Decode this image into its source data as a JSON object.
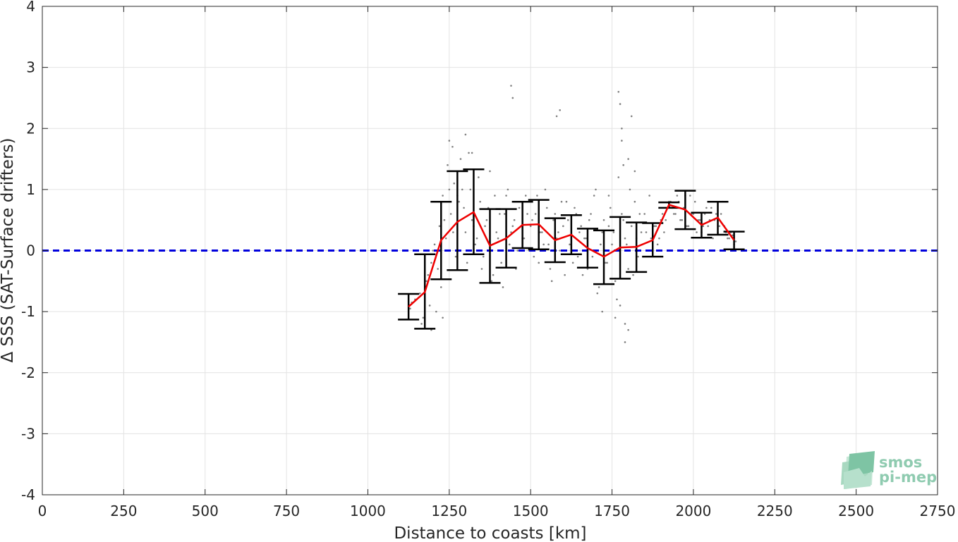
{
  "chart_data": {
    "type": "scatter",
    "xlabel": "Distance to coasts [km]",
    "ylabel": "Δ SSS (SAT-Surface drifters)",
    "xlim": [
      0,
      2750
    ],
    "ylim": [
      -4,
      4
    ],
    "x_ticks": [
      0,
      250,
      500,
      750,
      1000,
      1250,
      1500,
      1750,
      2000,
      2250,
      2500,
      2750
    ],
    "y_ticks": [
      -4,
      -3,
      -2,
      -1,
      0,
      1,
      2,
      3,
      4
    ],
    "grid": true,
    "zero_line": {
      "y": 0,
      "color": "#0000dd",
      "style": "dashed"
    },
    "mean_line_color": "#ee0000",
    "errorbar_color": "#000000",
    "scatter_color": "#808080",
    "binned": {
      "x": [
        1125,
        1175,
        1225,
        1275,
        1325,
        1375,
        1425,
        1475,
        1525,
        1575,
        1625,
        1675,
        1725,
        1775,
        1825,
        1875,
        1925,
        1975,
        2025,
        2075,
        2125
      ],
      "mean": [
        -0.92,
        -0.68,
        0.17,
        0.47,
        0.63,
        0.08,
        0.2,
        0.42,
        0.43,
        0.17,
        0.26,
        0.04,
        -0.1,
        0.05,
        0.06,
        0.17,
        0.75,
        0.67,
        0.42,
        0.54,
        0.17
      ],
      "lower": [
        -1.13,
        -1.28,
        -0.47,
        -0.32,
        -0.06,
        -0.53,
        -0.28,
        0.04,
        0.02,
        -0.19,
        -0.06,
        -0.28,
        -0.55,
        -0.46,
        -0.35,
        -0.1,
        0.7,
        0.35,
        0.21,
        0.26,
        0.02
      ],
      "upper": [
        -0.71,
        -0.06,
        0.8,
        1.3,
        1.33,
        0.68,
        0.68,
        0.8,
        0.83,
        0.53,
        0.58,
        0.36,
        0.33,
        0.55,
        0.46,
        0.45,
        0.79,
        0.98,
        0.62,
        0.8,
        0.31
      ]
    },
    "scatter": {
      "x": [
        1130,
        1145,
        1160,
        1170,
        1180,
        1190,
        1195,
        1205,
        1215,
        1220,
        1230,
        1240,
        1245,
        1255,
        1265,
        1270,
        1280,
        1290,
        1300,
        1310,
        1320,
        1330,
        1340,
        1350,
        1360,
        1370,
        1380,
        1390,
        1400,
        1410,
        1420,
        1430,
        1440,
        1450,
        1460,
        1470,
        1480,
        1490,
        1500,
        1510,
        1520,
        1530,
        1540,
        1550,
        1560,
        1570,
        1580,
        1590,
        1600,
        1610,
        1620,
        1630,
        1640,
        1650,
        1660,
        1670,
        1680,
        1690,
        1700,
        1710,
        1720,
        1730,
        1740,
        1750,
        1760,
        1770,
        1775,
        1780,
        1790,
        1800,
        1810,
        1820,
        1830,
        1840,
        1850,
        1860,
        1870,
        1880,
        1890,
        1900,
        1910,
        1920,
        1930,
        1940,
        1950,
        1960,
        1970,
        1980,
        1990,
        2000,
        2010,
        2020,
        2030,
        2040,
        2050,
        2060,
        2070,
        2080,
        2090,
        2100,
        2110,
        2120,
        2130,
        1135,
        1165,
        1185,
        1200,
        1225,
        1235,
        1250,
        1262,
        1275,
        1285,
        1295,
        1305,
        1315,
        1325,
        1335,
        1345,
        1355,
        1365,
        1375,
        1385,
        1395,
        1405,
        1415,
        1425,
        1435,
        1445,
        1455,
        1465,
        1475,
        1485,
        1495,
        1505,
        1515,
        1525,
        1535,
        1545,
        1555,
        1565,
        1575,
        1585,
        1595,
        1605,
        1615,
        1625,
        1635,
        1645,
        1655,
        1665,
        1675,
        1685,
        1695,
        1705,
        1715,
        1725,
        1735,
        1745,
        1755,
        1765,
        1785,
        1795,
        1805,
        1815,
        1825,
        1835,
        1845,
        1855,
        1865,
        1875,
        1885,
        1895,
        1905,
        1915,
        1925,
        1935,
        1945,
        1955,
        1965,
        1975,
        1985,
        1995,
        2005,
        2015,
        2025,
        2035,
        2045,
        2055,
        2065,
        2075,
        2085,
        2095,
        2105,
        2115,
        2125,
        1440,
        1445,
        1580,
        1590,
        1770,
        1775,
        1780,
        1790,
        1800,
        1250,
        1260,
        1300,
        1320,
        1700,
        1720,
        1740,
        1760,
        1195,
        1210,
        1230,
        1780,
        1785,
        1790,
        1800,
        1810,
        1820
      ],
      "y": [
        -0.95,
        -0.8,
        -0.7,
        -1.1,
        -0.5,
        -0.9,
        -0.2,
        0.1,
        -0.3,
        0.4,
        0.9,
        0.2,
        1.4,
        0.6,
        1.1,
        -0.1,
        0.8,
        1.0,
        0.3,
        1.6,
        0.5,
        0.1,
        1.2,
        -0.3,
        0.4,
        0.7,
        -0.5,
        0.9,
        0.2,
        -0.2,
        0.6,
        1.0,
        0.3,
        0.5,
        0.0,
        0.8,
        0.2,
        0.6,
        0.4,
        -0.1,
        0.9,
        0.3,
        0.1,
        0.7,
        -0.3,
        0.5,
        0.2,
        0.0,
        0.4,
        0.8,
        0.1,
        -0.2,
        0.6,
        0.3,
        -0.4,
        0.2,
        0.5,
        -0.1,
        0.0,
        -0.6,
        0.3,
        -0.2,
        0.4,
        0.1,
        -0.5,
        1.2,
        -0.9,
        0.6,
        0.2,
        -0.3,
        0.4,
        0.8,
        -0.1,
        0.3,
        0.6,
        0.0,
        0.2,
        0.4,
        0.1,
        0.5,
        0.3,
        0.7,
        0.8,
        0.6,
        0.9,
        0.5,
        0.7,
        0.4,
        0.9,
        0.6,
        0.3,
        0.5,
        0.4,
        0.7,
        0.5,
        0.2,
        0.6,
        0.4,
        0.8,
        0.3,
        0.2,
        0.25,
        0.15,
        -0.85,
        -1.2,
        -0.4,
        0.0,
        -0.6,
        0.5,
        1.0,
        0.3,
        0.9,
        1.5,
        0.7,
        -0.2,
        1.0,
        0.4,
        0.2,
        0.8,
        -0.1,
        0.5,
        1.3,
        -0.4,
        0.3,
        0.6,
        -0.6,
        0.9,
        0.1,
        0.4,
        -0.3,
        0.7,
        0.2,
        0.9,
        0.0,
        0.5,
        0.6,
        -0.2,
        0.3,
        1.0,
        0.1,
        -0.5,
        0.6,
        0.3,
        0.8,
        -0.4,
        0.5,
        0.0,
        0.7,
        -0.1,
        0.4,
        0.2,
        -0.3,
        0.6,
        0.9,
        -0.7,
        0.1,
        0.5,
        -0.2,
        0.7,
        0.3,
        -0.8,
        0.5,
        0.1,
        1.0,
        -0.4,
        0.2,
        0.6,
        -0.1,
        0.3,
        0.9,
        0.0,
        0.4,
        0.2,
        0.6,
        0.5,
        0.8,
        0.7,
        0.6,
        0.8,
        0.5,
        0.9,
        0.4,
        0.6,
        0.8,
        0.5,
        0.3,
        0.6,
        0.4,
        0.7,
        0.5,
        0.3,
        0.6,
        0.4,
        0.2,
        0.3,
        0.1,
        2.7,
        2.5,
        2.2,
        2.3,
        2.6,
        2.4,
        2.0,
        -1.5,
        -1.3,
        1.8,
        1.7,
        1.9,
        1.6,
        1.0,
        -1.0,
        0.9,
        -1.1,
        -1.3,
        -1.0,
        -1.1,
        1.8,
        1.4,
        -1.2,
        1.5,
        2.2,
        1.3
      ]
    }
  },
  "logo": {
    "line1": "smos",
    "line2": "pi-mep"
  }
}
